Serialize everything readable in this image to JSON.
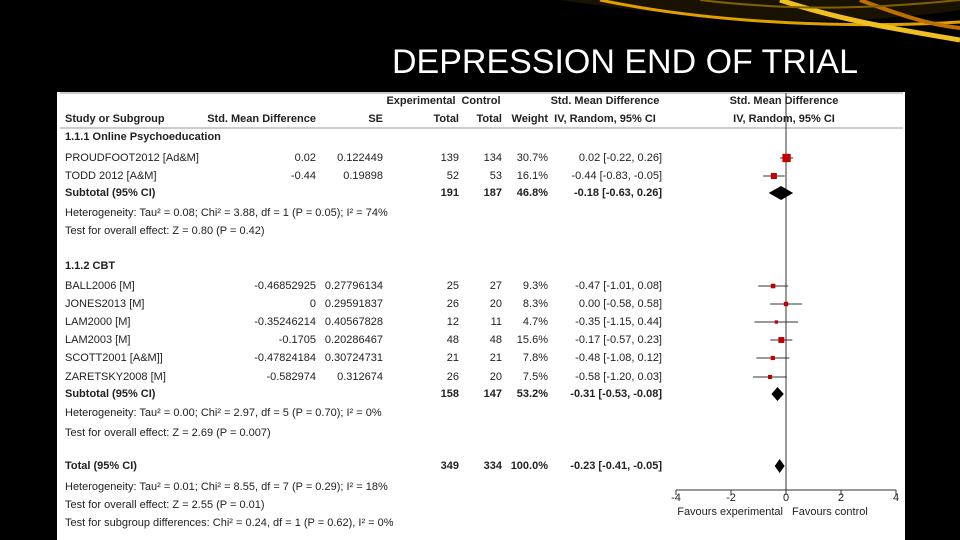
{
  "title": "DEPRESSION END OF TRIAL",
  "chart_data": {
    "type": "forest",
    "header_top": {
      "experimental": "Experimental",
      "control": "Control",
      "measure": "Std. Mean Difference",
      "plot_measure": "Std. Mean Difference"
    },
    "header": {
      "study": "Study or Subgroup",
      "smd": "Std. Mean Difference",
      "se": "SE",
      "experimental": "Total",
      "control": "Total",
      "weight": "Weight",
      "method": "IV, Random, 95% CI",
      "plot_method": "IV, Random, 95% CI"
    },
    "rows": [
      {
        "kind": "heading",
        "text": "1.1.1 Online Psychoeducation"
      },
      {
        "kind": "study",
        "name": "PROUDFOOT2012 [Ad&M]",
        "smd": 0.02,
        "se": 0.122449,
        "experimental": 139,
        "control": 134,
        "weight": {
          "value": 30.7,
          "label": "30.7%"
        },
        "estimate": {
          "value": 0.02,
          "label": "0.02 [-0.22, 0.26]"
        },
        "ci": [
          -0.22,
          0.26
        ]
      },
      {
        "kind": "study",
        "name": "TODD 2012 [A&M]",
        "smd": -0.44,
        "se": 0.19898,
        "experimental": 52,
        "control": 53,
        "weight": {
          "value": 16.1,
          "label": "16.1%"
        },
        "estimate": {
          "value": -0.44,
          "label": "-0.44 [-0.83, -0.05]"
        },
        "ci": [
          -0.83,
          -0.05
        ]
      },
      {
        "kind": "subtotal",
        "name": "Subtotal (95% CI)",
        "experimental": 191,
        "control": 187,
        "weight": {
          "value": 46.8,
          "label": "46.8%"
        },
        "estimate": {
          "value": -0.18,
          "label": "-0.18 [-0.63, 0.26]"
        },
        "ci": [
          -0.63,
          0.26
        ]
      },
      {
        "kind": "note",
        "text": "Heterogeneity: Tau² = 0.08; Chi² = 3.88, df = 1 (P = 0.05); I² = 74%"
      },
      {
        "kind": "note",
        "text": "Test for overall effect: Z = 0.80 (P = 0.42)"
      },
      {
        "kind": "heading",
        "text": "1.1.2 CBT"
      },
      {
        "kind": "study",
        "name": "BALL2006 [M]",
        "smd": -0.46852925,
        "se": 0.27796134,
        "experimental": 25,
        "control": 27,
        "weight": {
          "value": 9.3,
          "label": "9.3%"
        },
        "estimate": {
          "value": -0.47,
          "label": "-0.47 [-1.01, 0.08]"
        },
        "ci": [
          -1.01,
          0.08
        ]
      },
      {
        "kind": "study",
        "name": "JONES2013 [M]",
        "smd": 0,
        "se": 0.29591837,
        "experimental": 26,
        "control": 20,
        "weight": {
          "value": 8.3,
          "label": "8.3%"
        },
        "estimate": {
          "value": 0,
          "label": "0.00 [-0.58, 0.58]"
        },
        "ci": [
          -0.58,
          0.58
        ]
      },
      {
        "kind": "study",
        "name": "LAM2000 [M]",
        "smd": -0.35246214,
        "se": 0.40567828,
        "experimental": 12,
        "control": 11,
        "weight": {
          "value": 4.7,
          "label": "4.7%"
        },
        "estimate": {
          "value": -0.35,
          "label": "-0.35 [-1.15, 0.44]"
        },
        "ci": [
          -1.15,
          0.44
        ]
      },
      {
        "kind": "study",
        "name": "LAM2003 [M]",
        "smd": -0.1705,
        "se": 0.20286467,
        "experimental": 48,
        "control": 48,
        "weight": {
          "value": 15.6,
          "label": "15.6%"
        },
        "estimate": {
          "value": -0.17,
          "label": "-0.17 [-0.57, 0.23]"
        },
        "ci": [
          -0.57,
          0.23
        ]
      },
      {
        "kind": "study",
        "name": "SCOTT2001 [A&M]]",
        "smd": -0.47824184,
        "se": 0.30724731,
        "experimental": 21,
        "control": 21,
        "weight": {
          "value": 7.8,
          "label": "7.8%"
        },
        "estimate": {
          "value": -0.48,
          "label": "-0.48 [-1.08, 0.12]"
        },
        "ci": [
          -1.08,
          0.12
        ]
      },
      {
        "kind": "study",
        "name": "ZARETSKY2008  [M]",
        "smd": -0.582974,
        "se": 0.312674,
        "experimental": 26,
        "control": 20,
        "weight": {
          "value": 7.5,
          "label": "7.5%"
        },
        "estimate": {
          "value": -0.58,
          "label": "-0.58 [-1.20, 0.03]"
        },
        "ci": [
          -1.2,
          0.03
        ]
      },
      {
        "kind": "subtotal",
        "name": "Subtotal (95% CI)",
        "experimental": 158,
        "control": 147,
        "weight": {
          "value": 53.2,
          "label": "53.2%"
        },
        "estimate": {
          "value": -0.31,
          "label": "-0.31 [-0.53, -0.08]"
        },
        "ci": [
          -0.53,
          -0.08
        ]
      },
      {
        "kind": "note",
        "text": "Heterogeneity: Tau² = 0.00; Chi² = 2.97, df = 5 (P = 0.70); I² = 0%"
      },
      {
        "kind": "note",
        "text": "Test for overall effect: Z = 2.69 (P = 0.007)"
      },
      {
        "kind": "subtotal",
        "name": "Total (95% CI)",
        "experimental": 349,
        "control": 334,
        "weight": {
          "value": 100,
          "label": "100.0%"
        },
        "estimate": {
          "value": -0.23,
          "label": "-0.23 [-0.41, -0.05]"
        },
        "ci": [
          -0.41,
          -0.05
        ]
      },
      {
        "kind": "note",
        "text": "Heterogeneity: Tau² = 0.01; Chi² = 8.55, df = 7 (P = 0.29); I² = 18%"
      },
      {
        "kind": "note",
        "text": "Test for overall effect: Z = 2.55 (P = 0.01)"
      },
      {
        "kind": "note",
        "text": "Test for subgroup differences: Chi² = 0.24, df = 1 (P = 0.62), I² = 0%"
      }
    ],
    "xlim": [
      -4,
      4
    ],
    "xticks": [
      -4,
      -2,
      0,
      2,
      4
    ],
    "x_labels": [
      "Favours experimental",
      "Favours control"
    ],
    "study_color": "#c00000",
    "summary_color": "#000000"
  }
}
